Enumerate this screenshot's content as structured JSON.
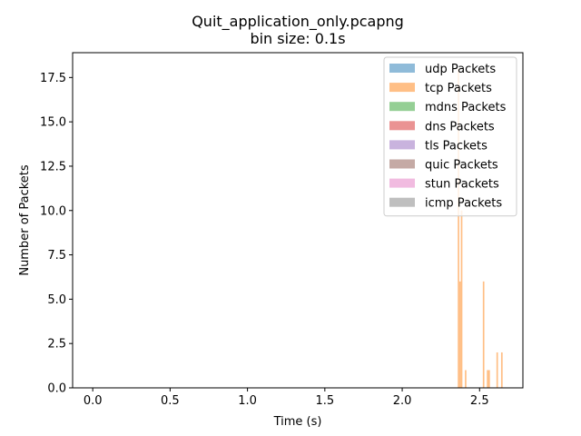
{
  "chart_data": {
    "type": "bar",
    "title": "Quit_application_only.pcapng",
    "subtitle": "bin size: 0.1s",
    "xlabel": "Time (s)",
    "ylabel": "Number of Packets",
    "xlim": [
      -0.13,
      2.78
    ],
    "ylim": [
      0,
      18.9
    ],
    "x_ticks": [
      0.0,
      0.5,
      1.0,
      1.5,
      2.0,
      2.5
    ],
    "x_tick_labels": [
      "0.0",
      "0.5",
      "1.0",
      "1.5",
      "2.0",
      "2.5"
    ],
    "y_ticks": [
      0.0,
      2.5,
      5.0,
      7.5,
      10.0,
      12.5,
      15.0,
      17.5
    ],
    "y_tick_labels": [
      "0.0",
      "2.5",
      "5.0",
      "7.5",
      "10.0",
      "12.5",
      "15.0",
      "17.5"
    ],
    "grid": false,
    "legend_position": "top-right",
    "series": [
      {
        "name": "udp Packets",
        "color": "#1f77b4",
        "bins": []
      },
      {
        "name": "tcp Packets",
        "color": "#ff7f0e",
        "bins": [
          {
            "x0": 2.359,
            "x1": 2.369,
            "value": 18
          },
          {
            "x0": 2.369,
            "x1": 2.379,
            "value": 6
          },
          {
            "x0": 2.379,
            "x1": 2.389,
            "value": 10
          },
          {
            "x0": 2.405,
            "x1": 2.415,
            "value": 1
          },
          {
            "x0": 2.521,
            "x1": 2.531,
            "value": 6
          },
          {
            "x0": 2.547,
            "x1": 2.557,
            "value": 1
          },
          {
            "x0": 2.557,
            "x1": 2.567,
            "value": 1
          },
          {
            "x0": 2.609,
            "x1": 2.619,
            "value": 2
          },
          {
            "x0": 2.639,
            "x1": 2.649,
            "value": 2
          }
        ]
      },
      {
        "name": "mdns Packets",
        "color": "#2ca02c",
        "bins": []
      },
      {
        "name": "dns Packets",
        "color": "#d62728",
        "bins": []
      },
      {
        "name": "tls Packets",
        "color": "#9467bd",
        "bins": []
      },
      {
        "name": "quic Packets",
        "color": "#8c564b",
        "bins": []
      },
      {
        "name": "stun Packets",
        "color": "#e377c2",
        "bins": []
      },
      {
        "name": "icmp Packets",
        "color": "#7f7f7f",
        "bins": []
      }
    ]
  }
}
